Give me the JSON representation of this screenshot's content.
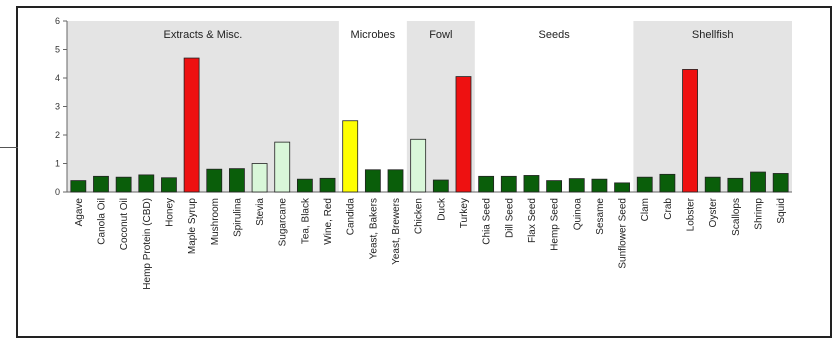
{
  "chart_data": {
    "type": "bar",
    "title": "",
    "xlabel": "",
    "ylabel": "",
    "ylim": [
      0,
      6
    ],
    "yticks": [
      0,
      1,
      2,
      3,
      4,
      5,
      6
    ],
    "grid": false,
    "groups": [
      {
        "name": "Extracts & Misc.",
        "shaded": true,
        "start": 0,
        "end": 11
      },
      {
        "name": "Microbes",
        "shaded": false,
        "start": 12,
        "end": 14
      },
      {
        "name": "Fowl",
        "shaded": true,
        "start": 15,
        "end": 17
      },
      {
        "name": "Seeds",
        "shaded": false,
        "start": 18,
        "end": 24
      },
      {
        "name": "Shellfish",
        "shaded": true,
        "start": 25,
        "end": 31
      }
    ],
    "categories": [
      "Agave",
      "Canola Oil",
      "Coconut Oil",
      "Hemp Protein (CBD)",
      "Honey",
      "Maple Syrup",
      "Mushroom",
      "Spirulina",
      "Stevia",
      "Sugarcane",
      "Tea, Black",
      "Wine, Red",
      "Candida",
      "Yeast, Bakers",
      "Yeast, Brewers",
      "Chicken",
      "Duck",
      "Turkey",
      "Chia Seed",
      "Dill Seed",
      "Flax Seed",
      "Hemp Seed",
      "Quinoa",
      "Sesame",
      "Sunflower Seed",
      "Clam",
      "Crab",
      "Lobster",
      "Oyster",
      "Scallops",
      "Shrimp",
      "Squid"
    ],
    "values": [
      0.4,
      0.55,
      0.52,
      0.6,
      0.5,
      4.7,
      0.8,
      0.82,
      1.0,
      1.75,
      0.45,
      0.48,
      2.5,
      0.78,
      0.78,
      1.85,
      0.42,
      4.05,
      0.55,
      0.55,
      0.58,
      0.4,
      0.47,
      0.45,
      0.32,
      0.52,
      0.62,
      4.3,
      0.52,
      0.48,
      0.7,
      0.65
    ],
    "bar_colors": [
      "#0a5e0a",
      "#0a5e0a",
      "#0a5e0a",
      "#0a5e0a",
      "#0a5e0a",
      "#ee1111",
      "#0a5e0a",
      "#0a5e0a",
      "#d9f7d9",
      "#d9f7d9",
      "#0a5e0a",
      "#0a5e0a",
      "#ffff00",
      "#0a5e0a",
      "#0a5e0a",
      "#d9f7d9",
      "#0a5e0a",
      "#ee1111",
      "#0a5e0a",
      "#0a5e0a",
      "#0a5e0a",
      "#0a5e0a",
      "#0a5e0a",
      "#0a5e0a",
      "#0a5e0a",
      "#0a5e0a",
      "#0a5e0a",
      "#ee1111",
      "#0a5e0a",
      "#0a5e0a",
      "#0a5e0a",
      "#0a5e0a"
    ],
    "colors": {
      "shade": "#e4e4e4",
      "axis": "#666666",
      "bar_stroke": "#222222"
    }
  }
}
